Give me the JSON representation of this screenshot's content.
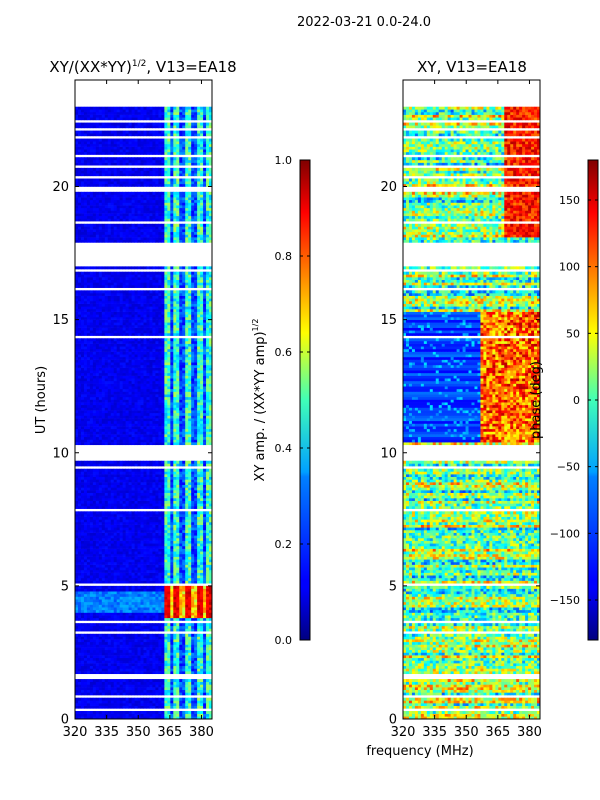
{
  "figure_title": "2022-03-21 0.0-24.0",
  "shared_xlabel": "frequency (MHz)",
  "chart_data": [
    {
      "type": "heatmap",
      "title_main": "XY/(XX*YY)",
      "title_sup": "1/2",
      "title_rest": ", V13=EA18",
      "xlabel": "",
      "ylabel": "UT (hours)",
      "xlim": [
        320,
        385
      ],
      "ylim": [
        0,
        24
      ],
      "x_ticks": [
        320,
        335,
        350,
        365,
        380
      ],
      "y_ticks": [
        0,
        5,
        10,
        15,
        20
      ],
      "colormap": "jet",
      "colorbar": {
        "label_main": "XY amp. / (XX*YY amp)",
        "label_sup": "1/2",
        "range": [
          0.0,
          1.0
        ],
        "ticks": [
          "0.0",
          "0.2",
          "0.4",
          "0.6",
          "0.8",
          "1.0"
        ],
        "tick_values": [
          0.0,
          0.2,
          0.4,
          0.6,
          0.8,
          1.0
        ]
      },
      "data_extent_hours": [
        0.0,
        23.0
      ],
      "gaps_hours": [
        [
          0.35,
          0.45
        ],
        [
          0.85,
          0.95
        ],
        [
          1.55,
          1.75
        ],
        [
          3.25,
          3.35
        ],
        [
          3.6,
          3.75
        ],
        [
          4.95,
          5.05
        ],
        [
          5.25,
          5.32
        ],
        [
          5.55,
          5.62
        ],
        [
          5.95,
          6.02
        ],
        [
          6.35,
          6.42
        ],
        [
          6.75,
          6.82
        ],
        [
          7.45,
          7.52
        ],
        [
          7.75,
          7.85
        ],
        [
          8.55,
          8.62
        ],
        [
          8.95,
          9.02
        ],
        [
          9.35,
          9.45
        ],
        [
          9.7,
          10.3
        ],
        [
          10.55,
          10.62
        ],
        [
          11.05,
          11.1
        ],
        [
          11.45,
          11.5
        ],
        [
          11.95,
          12.0
        ],
        [
          12.45,
          12.5
        ],
        [
          13.15,
          13.2
        ],
        [
          13.55,
          13.6
        ],
        [
          13.95,
          14.0
        ],
        [
          14.3,
          14.35
        ],
        [
          15.25,
          15.3
        ],
        [
          15.75,
          15.8
        ],
        [
          16.1,
          16.15
        ],
        [
          16.55,
          16.6
        ],
        [
          16.8,
          16.85
        ],
        [
          17.0,
          17.9
        ],
        [
          18.25,
          18.3
        ],
        [
          18.6,
          18.65
        ],
        [
          19.0,
          19.05
        ],
        [
          19.4,
          19.45
        ],
        [
          19.85,
          20.05
        ],
        [
          20.35,
          20.4
        ],
        [
          20.75,
          20.8
        ],
        [
          21.15,
          21.2
        ],
        [
          21.5,
          21.55
        ],
        [
          21.85,
          21.9
        ],
        [
          22.15,
          22.2
        ],
        [
          22.45,
          22.5
        ],
        [
          22.7,
          22.75
        ]
      ],
      "active_band_mhz": [
        362,
        384
      ],
      "notes": "Amplitude mostly near 0.0-0.2 below 362 MHz; bright streaks 0.4-0.6 in 362-384 MHz channels; peak ~0.8-1.0 near UT 3.8-4.8 h"
    },
    {
      "type": "heatmap",
      "title": "XY, V13=EA18",
      "xlabel": "",
      "ylabel": "",
      "xlim": [
        320,
        385
      ],
      "ylim": [
        0,
        24
      ],
      "x_ticks": [
        320,
        335,
        350,
        365,
        380
      ],
      "y_ticks": [
        0,
        5,
        10,
        15,
        20
      ],
      "colormap": "jet",
      "colorbar": {
        "label": "phase (deg)",
        "range": [
          -180,
          180
        ],
        "ticks": [
          "−150",
          "−100",
          "−50",
          "0",
          "50",
          "100",
          "150"
        ],
        "tick_values": [
          -150,
          -100,
          -50,
          0,
          50,
          100,
          150
        ]
      },
      "data_extent_hours": [
        0.0,
        23.0
      ],
      "gaps_hours": [
        [
          0.35,
          0.45
        ],
        [
          0.85,
          0.95
        ],
        [
          1.55,
          1.75
        ],
        [
          3.25,
          3.35
        ],
        [
          3.6,
          3.75
        ],
        [
          4.95,
          5.05
        ],
        [
          5.25,
          5.32
        ],
        [
          5.55,
          5.62
        ],
        [
          5.95,
          6.02
        ],
        [
          6.35,
          6.42
        ],
        [
          6.75,
          6.82
        ],
        [
          7.45,
          7.52
        ],
        [
          7.75,
          7.85
        ],
        [
          8.55,
          8.62
        ],
        [
          8.95,
          9.02
        ],
        [
          9.35,
          9.45
        ],
        [
          9.7,
          10.3
        ],
        [
          10.55,
          10.62
        ],
        [
          11.05,
          11.1
        ],
        [
          11.45,
          11.5
        ],
        [
          11.95,
          12.0
        ],
        [
          12.45,
          12.5
        ],
        [
          13.15,
          13.2
        ],
        [
          13.55,
          13.6
        ],
        [
          13.95,
          14.0
        ],
        [
          14.3,
          14.35
        ],
        [
          15.25,
          15.3
        ],
        [
          15.75,
          15.8
        ],
        [
          16.1,
          16.15
        ],
        [
          16.55,
          16.6
        ],
        [
          16.8,
          16.85
        ],
        [
          17.0,
          17.9
        ],
        [
          18.25,
          18.3
        ],
        [
          18.6,
          18.65
        ],
        [
          19.0,
          19.05
        ],
        [
          19.4,
          19.45
        ],
        [
          19.85,
          20.05
        ],
        [
          20.35,
          20.4
        ],
        [
          20.75,
          20.8
        ],
        [
          21.15,
          21.2
        ],
        [
          21.5,
          21.55
        ],
        [
          21.85,
          21.9
        ],
        [
          22.15,
          22.2
        ],
        [
          22.45,
          22.5
        ],
        [
          22.7,
          22.75
        ]
      ],
      "notes": "Phase varies by channel; near -150 deg (blue) between UT 10.3-15 h below 357 MHz, red/orange (+100 to +180 deg) bands above 357 MHz in that interval; mixed green/yellow elsewhere"
    }
  ]
}
